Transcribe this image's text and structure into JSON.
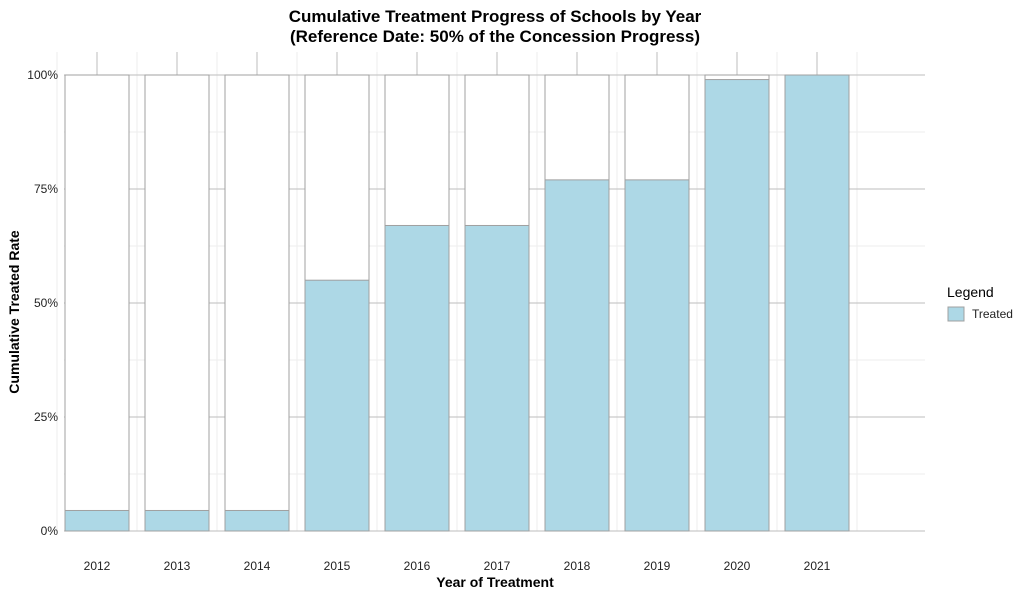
{
  "chart_data": {
    "type": "bar",
    "title": "Cumulative Treatment Progress of Schools by Year",
    "subtitle": "(Reference Date: 50% of the Concession Progress)",
    "xlabel": "Year of Treatment",
    "ylabel": "Cumulative Treated Rate",
    "categories": [
      "2012",
      "2013",
      "2014",
      "2015",
      "2016",
      "2017",
      "2018",
      "2019",
      "2020",
      "2021"
    ],
    "series": [
      {
        "name": "Treated",
        "values": [
          0.045,
          0.045,
          0.045,
          0.55,
          0.67,
          0.67,
          0.77,
          0.77,
          0.99,
          1.0
        ],
        "color": "#add8e6"
      }
    ],
    "background_bar_value": 1.0,
    "ylim": [
      0,
      1
    ],
    "yticks": [
      0,
      0.25,
      0.5,
      0.75,
      1.0
    ],
    "ytick_labels": [
      "0%",
      "25%",
      "50%",
      "75%",
      "100%"
    ],
    "grid": true,
    "legend": {
      "title": "Legend",
      "position": "right",
      "entries": [
        "Treated"
      ]
    },
    "colors": {
      "fill": "#add8e6",
      "outline": "#a0a0a0",
      "grid": "#bdbdbd",
      "minor_grid": "#eeeeee"
    }
  }
}
